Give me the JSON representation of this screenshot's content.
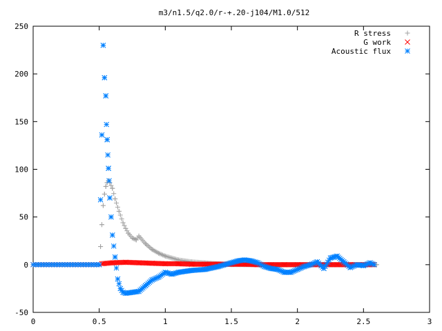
{
  "chart_data": {
    "type": "scatter",
    "title": "m3/n1.5/q2.0/r-+.20-j104/M1.0/512",
    "xlim": [
      0,
      3
    ],
    "ylim": [
      -50,
      250
    ],
    "xticks": [
      0,
      0.5,
      1,
      1.5,
      2,
      2.5,
      3
    ],
    "xtick_labels": [
      "0",
      "0.5",
      "1",
      "1.5",
      "2",
      "2.5",
      "3"
    ],
    "yticks": [
      -50,
      0,
      50,
      100,
      150,
      200,
      250
    ],
    "ytick_labels": [
      "-50",
      "0",
      "50",
      "100",
      "150",
      "200",
      "250"
    ],
    "grid": false,
    "legend_position": "top-right",
    "series": [
      {
        "name": "R stress",
        "marker": "plus",
        "color": "#a0a0a0",
        "x": [
          0.51,
          0.52,
          0.53,
          0.54,
          0.55,
          0.56,
          0.57,
          0.58,
          0.6,
          0.62,
          0.65,
          0.68,
          0.7,
          0.72,
          0.75,
          0.78,
          0.8,
          0.85,
          0.9,
          0.95,
          1.0,
          1.1,
          1.2,
          1.3,
          1.4,
          1.5,
          1.6,
          1.8,
          2.0,
          2.2,
          2.4,
          2.6
        ],
        "y": [
          19,
          42,
          62,
          74,
          82,
          86,
          88,
          86,
          80,
          69,
          56,
          44,
          38,
          33,
          28,
          26,
          30,
          22,
          16,
          12,
          9,
          5,
          3,
          2,
          1,
          0,
          0,
          0,
          0,
          0,
          0,
          0
        ]
      },
      {
        "name": "G work",
        "marker": "x",
        "color": "#ff0000",
        "x": [
          0.52,
          0.6,
          0.7,
          0.8,
          0.9,
          1.0,
          1.1,
          1.2,
          1.3,
          1.4,
          1.5,
          1.6,
          1.7,
          1.8,
          1.9,
          2.0,
          2.1,
          2.2,
          2.3,
          2.4,
          2.5,
          2.58
        ],
        "y": [
          1,
          2,
          2.5,
          2,
          1.5,
          1,
          1,
          0.5,
          0.5,
          0.5,
          0.5,
          0.5,
          0,
          0,
          0,
          0,
          0,
          0,
          0,
          0,
          0,
          0
        ]
      },
      {
        "name": "Acoustic flux",
        "marker": "asterisk",
        "color": "#0080ff",
        "x": [
          0.5,
          0.52,
          0.53,
          0.54,
          0.55,
          0.555,
          0.56,
          0.565,
          0.57,
          0.575,
          0.58,
          0.59,
          0.6,
          0.62,
          0.64,
          0.66,
          0.68,
          0.7,
          0.75,
          0.8,
          0.85,
          0.9,
          0.95,
          1.0,
          1.05,
          1.1,
          1.2,
          1.3,
          1.4,
          1.5,
          1.55,
          1.6,
          1.65,
          1.7,
          1.75,
          1.8,
          1.85,
          1.9,
          1.95,
          2.0,
          2.05,
          2.1,
          2.15,
          2.2,
          2.25,
          2.3,
          2.35,
          2.4,
          2.45,
          2.5,
          2.55,
          2.58
        ],
        "y": [
          0,
          136,
          230,
          196,
          177,
          147,
          131,
          115,
          101,
          88,
          70,
          50,
          31,
          8,
          -15,
          -25,
          -29,
          -30,
          -29,
          -28,
          -22,
          -16,
          -13,
          -8,
          -10,
          -8,
          -6,
          -5,
          -2,
          2,
          4,
          5,
          4,
          2,
          -2,
          -4,
          -5,
          -8,
          -8,
          -5,
          -2,
          0,
          3,
          -4,
          7,
          9,
          3,
          -3,
          0,
          -1,
          2,
          0
        ]
      }
    ]
  }
}
